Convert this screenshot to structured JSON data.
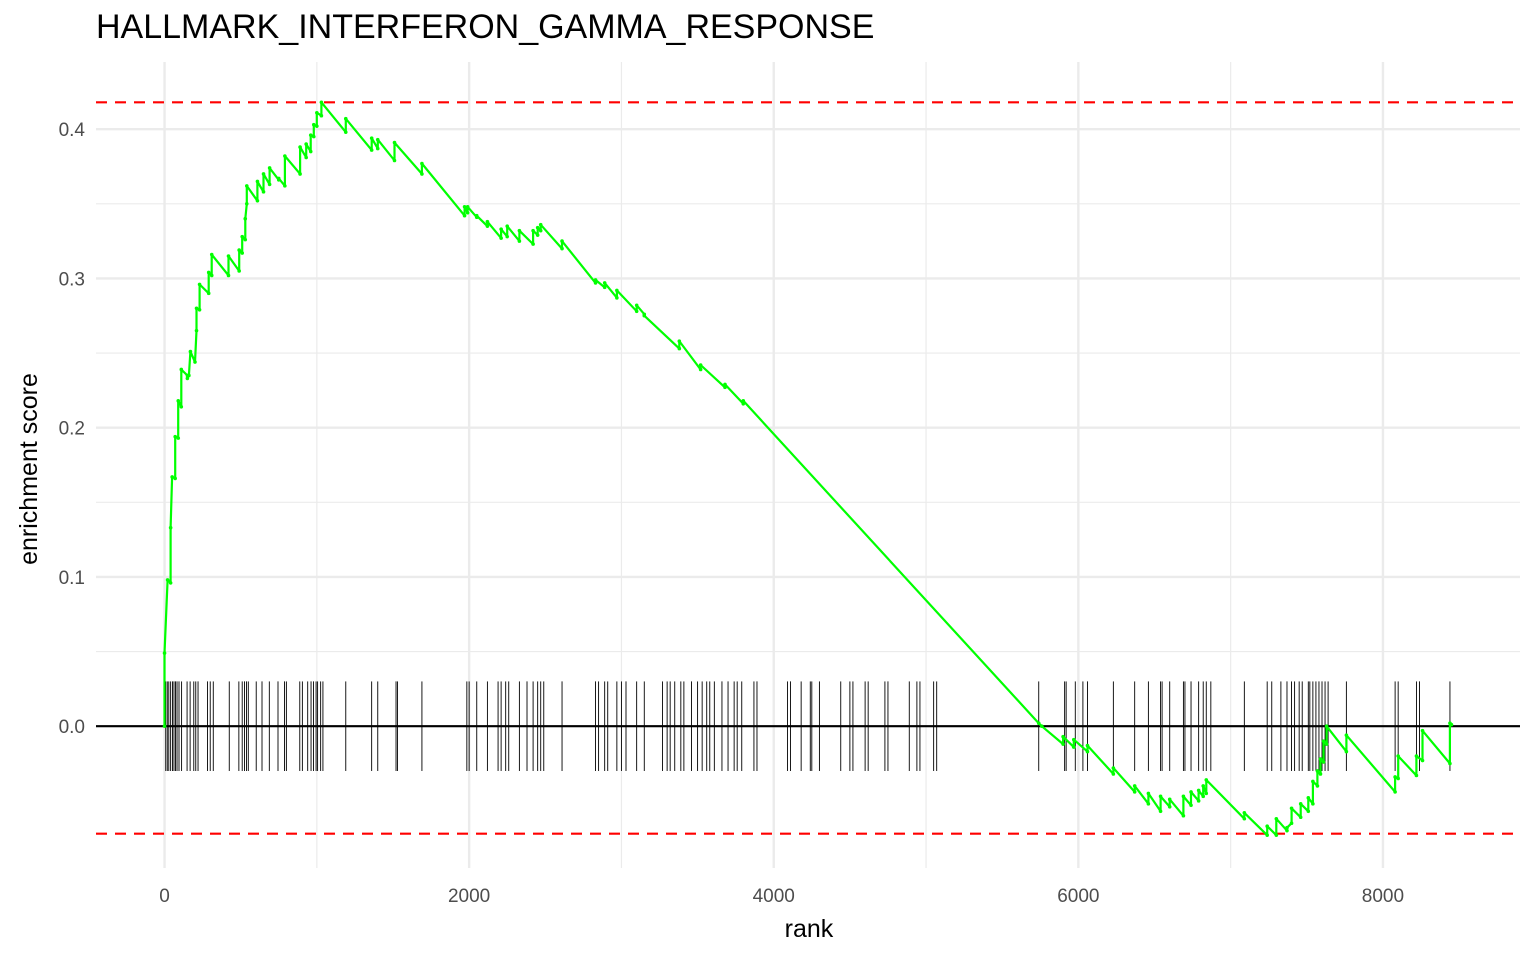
{
  "chart_data": {
    "type": "line",
    "title": "HALLMARK_INTERFERON_GAMMA_RESPONSE",
    "xlabel": "rank",
    "ylabel": "enrichment score",
    "xlim": [
      -450,
      8900
    ],
    "ylim": [
      -0.095,
      0.445
    ],
    "x_ticks": [
      0,
      2000,
      4000,
      6000,
      8000
    ],
    "y_ticks": [
      0.0,
      0.1,
      0.2,
      0.3,
      0.4
    ],
    "x_tick_labels": [
      "0",
      "2000",
      "4000",
      "6000",
      "8000"
    ],
    "y_tick_labels": [
      "0.0",
      "0.1",
      "0.2",
      "0.3",
      "0.4"
    ],
    "grid": true,
    "colors": {
      "curve": "#00ff00",
      "threshold": "#ff0000",
      "zero_line": "#000000",
      "ticks": "#000000",
      "grid": "#ebebeb"
    },
    "thresholds": [
      0.418,
      -0.072
    ],
    "series": [
      {
        "values": [
          [
            0,
            0.0
          ],
          [
            0,
            0.049
          ],
          [
            20,
            0.098
          ],
          [
            40,
            0.096
          ],
          [
            40,
            0.133
          ],
          [
            50,
            0.167
          ],
          [
            70,
            0.166
          ],
          [
            70,
            0.194
          ],
          [
            90,
            0.193
          ],
          [
            90,
            0.218
          ],
          [
            110,
            0.214
          ],
          [
            110,
            0.239
          ],
          [
            150,
            0.235
          ],
          [
            150,
            0.233
          ],
          [
            160,
            0.235
          ],
          [
            170,
            0.251
          ],
          [
            200,
            0.244
          ],
          [
            210,
            0.265
          ],
          [
            210,
            0.28
          ],
          [
            230,
            0.279
          ],
          [
            230,
            0.296
          ],
          [
            290,
            0.29
          ],
          [
            290,
            0.304
          ],
          [
            310,
            0.302
          ],
          [
            310,
            0.316
          ],
          [
            420,
            0.302
          ],
          [
            420,
            0.315
          ],
          [
            490,
            0.305
          ],
          [
            490,
            0.319
          ],
          [
            510,
            0.317
          ],
          [
            510,
            0.328
          ],
          [
            530,
            0.326
          ],
          [
            530,
            0.34
          ],
          [
            540,
            0.35
          ],
          [
            540,
            0.362
          ],
          [
            610,
            0.352
          ],
          [
            610,
            0.365
          ],
          [
            650,
            0.358
          ],
          [
            650,
            0.37
          ],
          [
            690,
            0.363
          ],
          [
            690,
            0.374
          ],
          [
            750,
            0.366
          ],
          [
            750,
            0.367
          ],
          [
            790,
            0.362
          ],
          [
            790,
            0.382
          ],
          [
            890,
            0.37
          ],
          [
            890,
            0.388
          ],
          [
            930,
            0.381
          ],
          [
            930,
            0.39
          ],
          [
            960,
            0.385
          ],
          [
            960,
            0.396
          ],
          [
            980,
            0.395
          ],
          [
            980,
            0.403
          ],
          [
            1000,
            0.402
          ],
          [
            1000,
            0.411
          ],
          [
            1030,
            0.409
          ],
          [
            1030,
            0.418
          ],
          [
            1190,
            0.398
          ],
          [
            1190,
            0.407
          ],
          [
            1360,
            0.386
          ],
          [
            1360,
            0.394
          ],
          [
            1400,
            0.387
          ],
          [
            1400,
            0.393
          ],
          [
            1510,
            0.379
          ],
          [
            1510,
            0.391
          ],
          [
            1690,
            0.37
          ],
          [
            1690,
            0.377
          ],
          [
            1970,
            0.342
          ],
          [
            1970,
            0.348
          ],
          [
            1990,
            0.344
          ],
          [
            1990,
            0.348
          ],
          [
            2050,
            0.341
          ],
          [
            2050,
            0.342
          ],
          [
            2120,
            0.335
          ],
          [
            2120,
            0.338
          ],
          [
            2210,
            0.327
          ],
          [
            2210,
            0.333
          ],
          [
            2250,
            0.328
          ],
          [
            2250,
            0.335
          ],
          [
            2330,
            0.325
          ],
          [
            2330,
            0.332
          ],
          [
            2420,
            0.323
          ],
          [
            2420,
            0.332
          ],
          [
            2450,
            0.329
          ],
          [
            2450,
            0.334
          ],
          [
            2470,
            0.332
          ],
          [
            2470,
            0.336
          ],
          [
            2610,
            0.32
          ],
          [
            2610,
            0.325
          ],
          [
            2830,
            0.297
          ],
          [
            2830,
            0.299
          ],
          [
            2890,
            0.294
          ],
          [
            2890,
            0.297
          ],
          [
            2970,
            0.287
          ],
          [
            2970,
            0.292
          ],
          [
            3100,
            0.278
          ],
          [
            3100,
            0.282
          ],
          [
            3150,
            0.276
          ],
          [
            3150,
            0.275
          ],
          [
            3380,
            0.253
          ],
          [
            3380,
            0.258
          ],
          [
            3520,
            0.239
          ],
          [
            3520,
            0.242
          ],
          [
            3680,
            0.227
          ],
          [
            3680,
            0.229
          ],
          [
            3800,
            0.216
          ],
          [
            3800,
            0.218
          ],
          [
            5740,
            0.002
          ],
          [
            5760,
            0.0
          ],
          [
            5900,
            -0.012
          ],
          [
            5900,
            -0.007
          ],
          [
            5970,
            -0.014
          ],
          [
            5970,
            -0.009
          ],
          [
            6060,
            -0.017
          ],
          [
            6060,
            -0.013
          ],
          [
            6230,
            -0.032
          ],
          [
            6230,
            -0.028
          ],
          [
            6370,
            -0.044
          ],
          [
            6370,
            -0.04
          ],
          [
            6460,
            -0.052
          ],
          [
            6460,
            -0.045
          ],
          [
            6540,
            -0.057
          ],
          [
            6540,
            -0.047
          ],
          [
            6600,
            -0.054
          ],
          [
            6600,
            -0.049
          ],
          [
            6690,
            -0.06
          ],
          [
            6690,
            -0.047
          ],
          [
            6740,
            -0.053
          ],
          [
            6740,
            -0.044
          ],
          [
            6790,
            -0.05
          ],
          [
            6790,
            -0.043
          ],
          [
            6820,
            -0.047
          ],
          [
            6820,
            -0.04
          ],
          [
            6840,
            -0.045
          ],
          [
            6840,
            -0.036
          ],
          [
            7090,
            -0.062
          ],
          [
            7090,
            -0.058
          ],
          [
            7240,
            -0.073
          ],
          [
            7240,
            -0.067
          ],
          [
            7300,
            -0.073
          ],
          [
            7300,
            -0.062
          ],
          [
            7370,
            -0.07
          ],
          [
            7370,
            -0.068
          ],
          [
            7400,
            -0.065
          ],
          [
            7400,
            -0.055
          ],
          [
            7460,
            -0.061
          ],
          [
            7460,
            -0.052
          ],
          [
            7510,
            -0.057
          ],
          [
            7510,
            -0.048
          ],
          [
            7540,
            -0.052
          ],
          [
            7540,
            -0.037
          ],
          [
            7570,
            -0.04
          ],
          [
            7570,
            -0.03
          ],
          [
            7590,
            -0.032
          ],
          [
            7590,
            -0.022
          ],
          [
            7610,
            -0.024
          ],
          [
            7610,
            -0.01
          ],
          [
            7630,
            -0.012
          ],
          [
            7630,
            0.0
          ],
          [
            7760,
            -0.017
          ],
          [
            7760,
            -0.006
          ],
          [
            8080,
            -0.044
          ],
          [
            8080,
            -0.034
          ],
          [
            8100,
            -0.035
          ],
          [
            8100,
            -0.02
          ],
          [
            8220,
            -0.033
          ],
          [
            8220,
            -0.02
          ],
          [
            8260,
            -0.023
          ],
          [
            8260,
            -0.003
          ],
          [
            8440,
            -0.025
          ],
          [
            8440,
            0.002
          ],
          [
            8450,
            0.001
          ]
        ]
      }
    ],
    "gene_ranks": [
      8,
      18,
      28,
      40,
      52,
      62,
      72,
      82,
      95,
      112,
      148,
      168,
      192,
      205,
      220,
      282,
      300,
      320,
      425,
      488,
      510,
      525,
      538,
      550,
      602,
      640,
      688,
      745,
      788,
      800,
      888,
      905,
      940,
      962,
      978,
      995,
      1005,
      1025,
      1040,
      1190,
      1360,
      1400,
      1520,
      1530,
      1690,
      1985,
      2000,
      2050,
      2120,
      2190,
      2210,
      2240,
      2260,
      2330,
      2380,
      2420,
      2450,
      2470,
      2490,
      2610,
      2830,
      2850,
      2890,
      2910,
      2970,
      3000,
      3030,
      3100,
      3150,
      3270,
      3300,
      3320,
      3350,
      3390,
      3410,
      3460,
      3500,
      3530,
      3560,
      3580,
      3610,
      3660,
      3700,
      3740,
      3760,
      3790,
      3870,
      3890,
      4090,
      4110,
      4180,
      4240,
      4250,
      4300,
      4440,
      4500,
      4520,
      4600,
      4620,
      4730,
      4750,
      4890,
      4940,
      4960,
      5050,
      5070,
      5740,
      5910,
      5920,
      5980,
      6030,
      6060,
      6230,
      6370,
      6460,
      6540,
      6550,
      6600,
      6690,
      6700,
      6740,
      6790,
      6820,
      6840,
      6870,
      7090,
      7240,
      7270,
      7330,
      7370,
      7400,
      7420,
      7450,
      7470,
      7510,
      7520,
      7540,
      7560,
      7580,
      7600,
      7620,
      7640,
      7760,
      8080,
      8100,
      8220,
      8240,
      8440
    ]
  }
}
